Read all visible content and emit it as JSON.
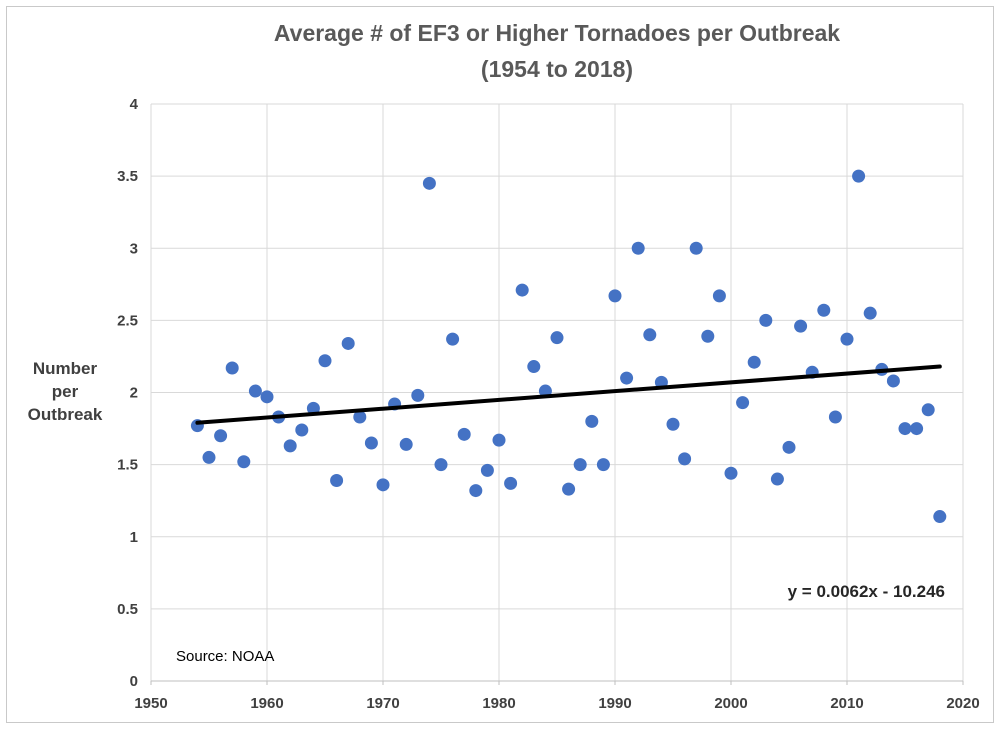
{
  "chart_data": {
    "type": "scatter",
    "title": "Average # of EF3 or Higher Tornadoes per Outbreak",
    "subtitle": "(1954 to 2018)",
    "ylabel": "Number per Outbreak",
    "ylabel_lines": [
      "Number",
      "per",
      "Outbreak"
    ],
    "xlabel": "",
    "source": "Source: NOAA",
    "xlim": [
      1950,
      2020
    ],
    "ylim": [
      0,
      4
    ],
    "x_ticks": [
      1950,
      1960,
      1970,
      1980,
      1990,
      2000,
      2010,
      2020
    ],
    "y_tick_labels": [
      "0",
      "0.5",
      "1",
      "1.5",
      "2",
      "2.5",
      "3",
      "3.5",
      "4"
    ],
    "grid": true,
    "legend": "none",
    "marker_color": "#4472C4",
    "grid_color": "#d9d9d9",
    "axis_color": "#bfbfbf",
    "points": [
      [
        1954,
        1.77
      ],
      [
        1955,
        1.55
      ],
      [
        1956,
        1.7
      ],
      [
        1957,
        2.17
      ],
      [
        1958,
        1.52
      ],
      [
        1959,
        2.01
      ],
      [
        1960,
        1.97
      ],
      [
        1961,
        1.83
      ],
      [
        1962,
        1.63
      ],
      [
        1963,
        1.74
      ],
      [
        1964,
        1.89
      ],
      [
        1965,
        2.22
      ],
      [
        1966,
        1.39
      ],
      [
        1967,
        2.34
      ],
      [
        1968,
        1.83
      ],
      [
        1969,
        1.65
      ],
      [
        1970,
        1.36
      ],
      [
        1971,
        1.92
      ],
      [
        1972,
        1.64
      ],
      [
        1973,
        1.98
      ],
      [
        1974,
        3.45
      ],
      [
        1975,
        1.5
      ],
      [
        1976,
        2.37
      ],
      [
        1977,
        1.71
      ],
      [
        1978,
        1.32
      ],
      [
        1979,
        1.46
      ],
      [
        1980,
        1.67
      ],
      [
        1981,
        1.37
      ],
      [
        1982,
        2.71
      ],
      [
        1983,
        2.18
      ],
      [
        1984,
        2.01
      ],
      [
        1985,
        2.38
      ],
      [
        1986,
        1.33
      ],
      [
        1987,
        1.5
      ],
      [
        1988,
        1.8
      ],
      [
        1989,
        1.5
      ],
      [
        1990,
        2.67
      ],
      [
        1991,
        2.1
      ],
      [
        1992,
        3.0
      ],
      [
        1993,
        2.4
      ],
      [
        1994,
        2.07
      ],
      [
        1995,
        1.78
      ],
      [
        1996,
        1.54
      ],
      [
        1997,
        3.0
      ],
      [
        1998,
        2.39
      ],
      [
        1999,
        2.67
      ],
      [
        2000,
        1.44
      ],
      [
        2001,
        1.93
      ],
      [
        2002,
        2.21
      ],
      [
        2003,
        2.5
      ],
      [
        2004,
        1.4
      ],
      [
        2005,
        1.62
      ],
      [
        2006,
        2.46
      ],
      [
        2007,
        2.14
      ],
      [
        2008,
        2.57
      ],
      [
        2009,
        1.83
      ],
      [
        2010,
        2.37
      ],
      [
        2011,
        3.5
      ],
      [
        2012,
        2.55
      ],
      [
        2013,
        2.16
      ],
      [
        2014,
        2.08
      ],
      [
        2015,
        1.75
      ],
      [
        2016,
        1.75
      ],
      [
        2017,
        1.88
      ],
      [
        2018,
        1.14
      ]
    ],
    "trendline": {
      "label": "y = 0.0062x - 10.246",
      "slope": 0.0062,
      "intercept": -10.246,
      "start": [
        1954,
        1.79
      ],
      "end": [
        2018,
        2.18
      ],
      "color": "#000000"
    }
  }
}
